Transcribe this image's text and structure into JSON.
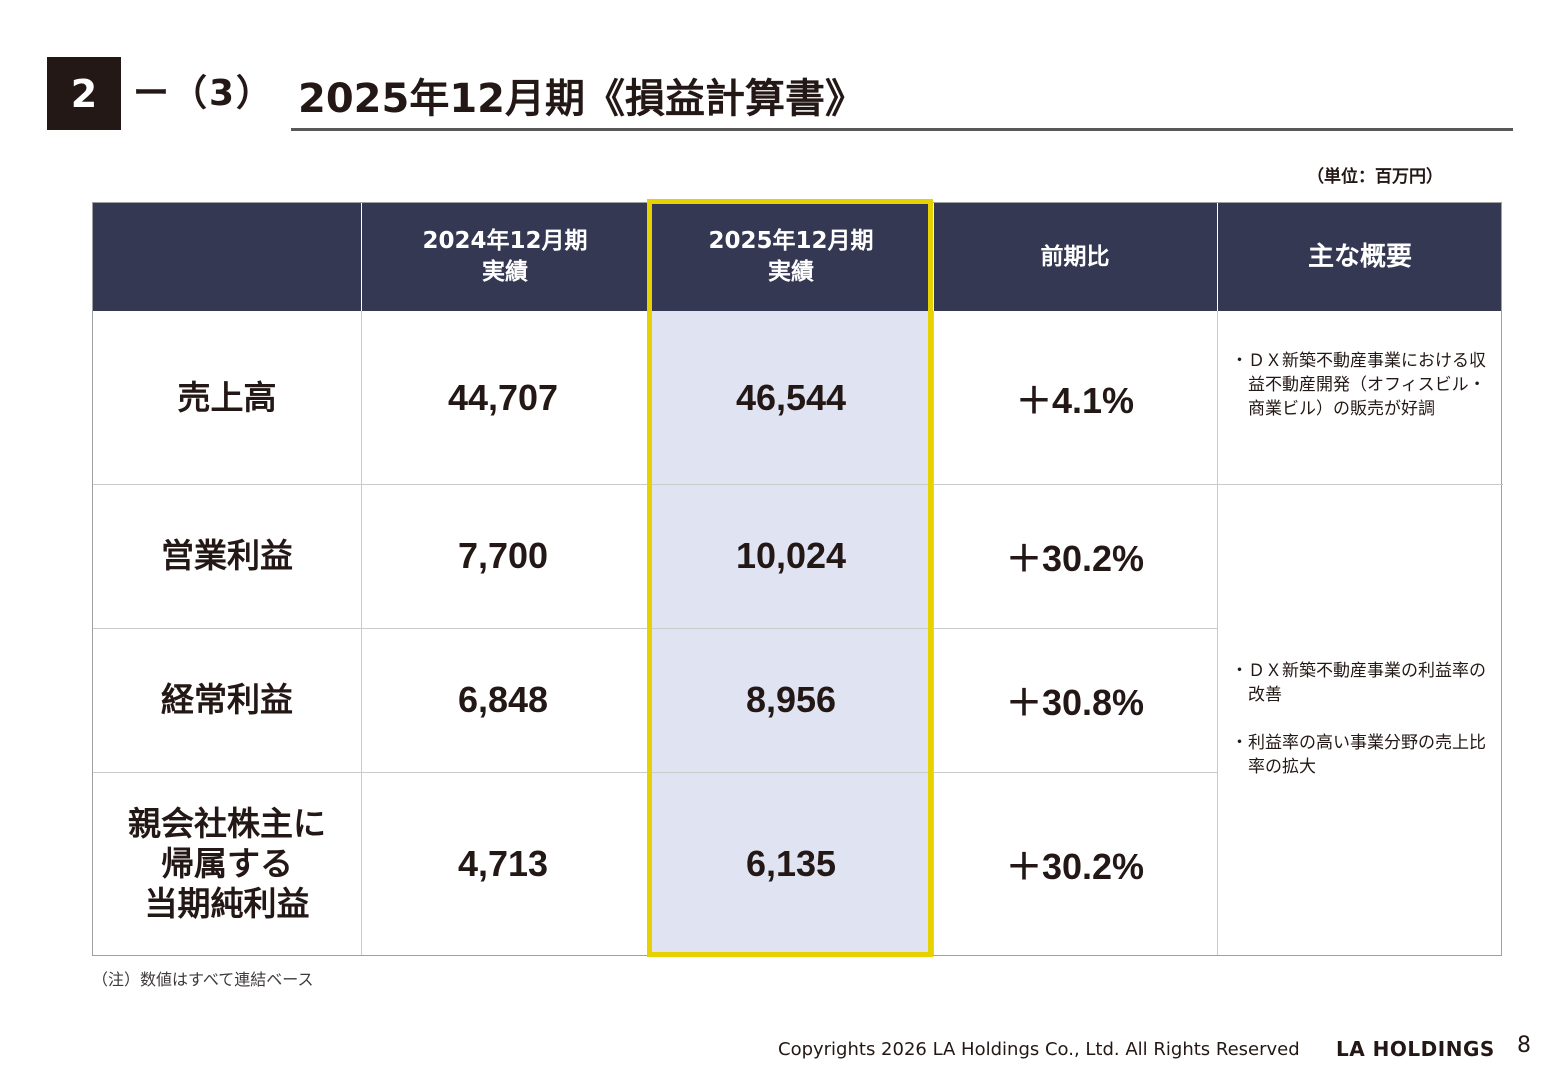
{
  "header": {
    "section_number": "2",
    "section_sub": "ー（3）",
    "title": "2025年12月期《損益計算書》",
    "unit_note": "（単位：百万円）"
  },
  "table": {
    "columns": [
      {
        "line1": "",
        "line2": ""
      },
      {
        "line1": "2024年12月期",
        "line2": "実績"
      },
      {
        "line1": "2025年12月期",
        "line2": "実績"
      },
      {
        "line1": "前期比",
        "line2": ""
      },
      {
        "line1": "主な概要",
        "line2": ""
      }
    ],
    "rows": [
      {
        "label": "売上高",
        "fy2024": "44,707",
        "fy2025": "46,544",
        "change": "＋4.1%"
      },
      {
        "label": "営業利益",
        "fy2024": "7,700",
        "fy2025": "10,024",
        "change": "＋30.2%"
      },
      {
        "label": "経常利益",
        "fy2024": "6,848",
        "fy2025": "8,956",
        "change": "＋30.8%"
      },
      {
        "label_lines": [
          "親会社株主に",
          "帰属する",
          "当期純利益"
        ],
        "fy2024": "4,713",
        "fy2025": "6,135",
        "change": "＋30.2%"
      }
    ],
    "summaries": [
      [
        "・ＤＸ新築不動産事業における収益不動産開発（オフィスビル・商業ビル）の販売が好調"
      ],
      [
        "・ＤＸ新築不動産事業の利益率の改善",
        "・利益率の高い事業分野の売上比率の拡大"
      ]
    ]
  },
  "footnote": "（注）数値はすべて連結ベース",
  "footer": {
    "copyright": "Copyrights 2026 LA Holdings Co., Ltd.  All Rights Reserved",
    "brand": "LA HOLDINGS",
    "page_number": "8"
  },
  "colors": {
    "header_band": "#343852",
    "highlight_fill": "#e0e3f2",
    "highlight_border": "#e6d200"
  }
}
